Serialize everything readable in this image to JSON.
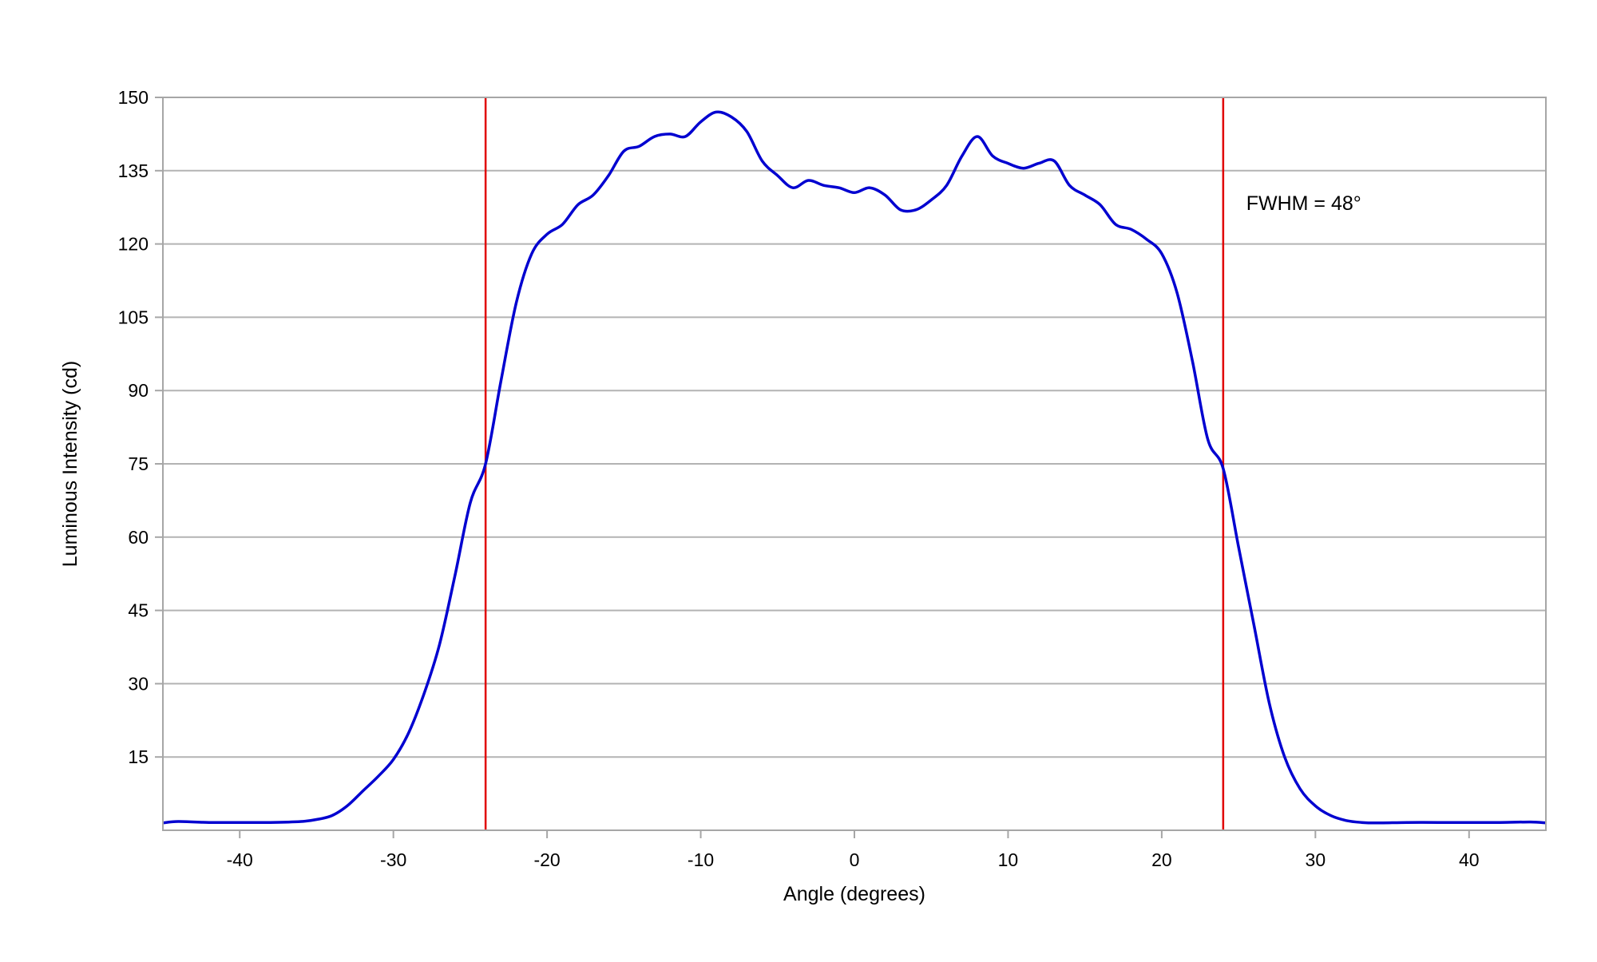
{
  "chart_data": {
    "type": "line",
    "title": "",
    "xlabel": "Angle (degrees)",
    "ylabel": "Luminous Intensity (cd)",
    "xlim": [
      -45,
      45
    ],
    "ylim": [
      0,
      150
    ],
    "xticks": [
      -40,
      -30,
      -20,
      -10,
      0,
      10,
      20,
      30,
      40
    ],
    "yticks": [
      15,
      30,
      45,
      60,
      75,
      90,
      105,
      120,
      135,
      150
    ],
    "grid": "horizontal",
    "legend": "none",
    "series": [
      {
        "color": "#0000d0",
        "x": [
          -45,
          -44,
          -42,
          -40,
          -38,
          -36,
          -35,
          -34,
          -33,
          -32,
          -31,
          -30,
          -29,
          -28,
          -27,
          -26,
          -25,
          -24,
          -23,
          -22,
          -21,
          -20,
          -19,
          -18,
          -17,
          -16,
          -15,
          -14,
          -13,
          -12,
          -11,
          -10,
          -9,
          -8,
          -7,
          -6,
          -5,
          -4,
          -3,
          -2,
          -1,
          0,
          1,
          2,
          3,
          4,
          5,
          6,
          7,
          8,
          9,
          10,
          11,
          12,
          13,
          14,
          15,
          16,
          17,
          18,
          19,
          20,
          21,
          22,
          23,
          24,
          25,
          26,
          27,
          28,
          29,
          30,
          31,
          32,
          33,
          34,
          36,
          38,
          40,
          42,
          44,
          45
        ],
        "y": [
          1.5,
          1.8,
          1.6,
          1.6,
          1.6,
          1.8,
          2.2,
          3.0,
          5.0,
          8.0,
          11.0,
          14.5,
          20.0,
          28.0,
          38.0,
          52.0,
          67.0,
          75.0,
          92.0,
          108.0,
          118.0,
          122.0,
          124.0,
          128.0,
          130.0,
          134.0,
          139.0,
          140.0,
          142.0,
          142.5,
          142.0,
          145.0,
          147.0,
          146.0,
          143.0,
          137.0,
          134.0,
          131.5,
          133.0,
          132.0,
          131.5,
          130.5,
          131.5,
          130.0,
          127.0,
          127.0,
          129.0,
          132.0,
          138.0,
          142.0,
          138.0,
          136.5,
          135.5,
          136.5,
          137.0,
          132.0,
          130.0,
          128.0,
          124.0,
          123.0,
          121.0,
          118.0,
          110.0,
          96.0,
          80.0,
          74.0,
          58.0,
          42.0,
          26.0,
          15.0,
          8.5,
          5.0,
          3.0,
          2.0,
          1.6,
          1.5,
          1.6,
          1.6,
          1.6,
          1.6,
          1.7,
          1.5
        ]
      }
    ],
    "reference_lines": [
      {
        "axis": "x",
        "value": -24,
        "color": "#e00000"
      },
      {
        "axis": "x",
        "value": 24,
        "color": "#e00000"
      }
    ],
    "annotation": {
      "text": "FWHM = 48°",
      "x": 25.5,
      "y": 127
    }
  }
}
